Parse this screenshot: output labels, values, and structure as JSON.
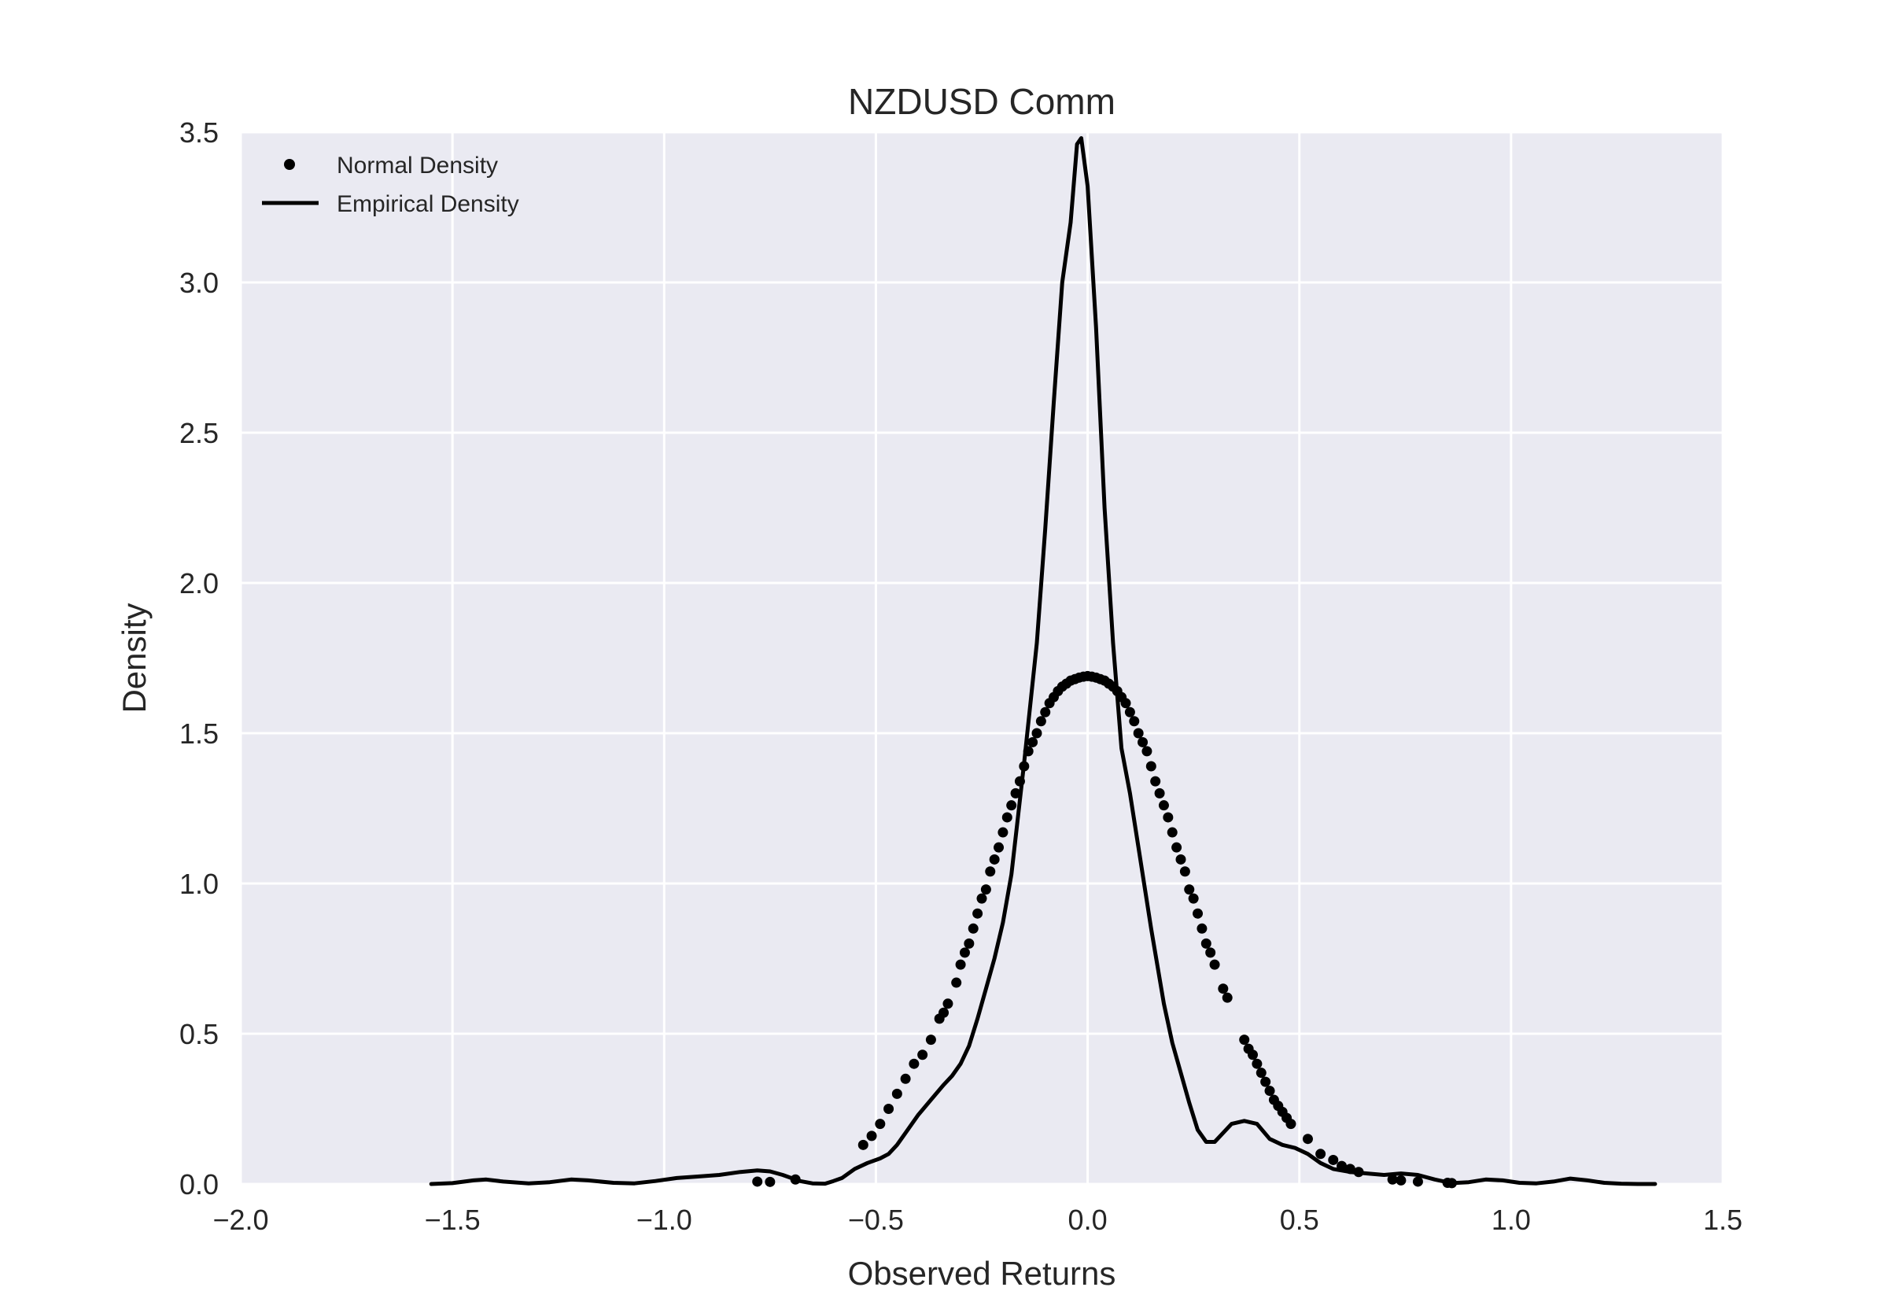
{
  "chart_data": {
    "type": "line",
    "title": "NZDUSD Comm",
    "xlabel": "Observed Returns",
    "ylabel": "Density",
    "xlim": [
      -2.0,
      1.5
    ],
    "ylim": [
      0.0,
      3.5
    ],
    "xticks": [
      -2.0,
      -1.5,
      -1.0,
      -0.5,
      0.0,
      0.5,
      1.0,
      1.5
    ],
    "xtick_labels": [
      "−2.0",
      "−1.5",
      "−1.0",
      "−0.5",
      "0.0",
      "0.5",
      "1.0",
      "1.5"
    ],
    "yticks": [
      0.0,
      0.5,
      1.0,
      1.5,
      2.0,
      2.5,
      3.0,
      3.5
    ],
    "ytick_labels": [
      "0.0",
      "0.5",
      "1.0",
      "1.5",
      "2.0",
      "2.5",
      "3.0",
      "3.5"
    ],
    "grid": true,
    "background": "#eaeaf2",
    "grid_color": "#ffffff",
    "series_color": "#000000",
    "legend_position": "top-left",
    "legend": [
      {
        "label": "Normal Density",
        "marker": "dot"
      },
      {
        "label": "Empirical Density",
        "marker": "line"
      }
    ],
    "series": [
      {
        "name": "Normal Density",
        "kind": "scatter",
        "mean": 0.0,
        "std": 0.236,
        "x": [
          -0.78,
          -0.75,
          -0.69,
          -0.53,
          -0.51,
          -0.49,
          -0.47,
          -0.45,
          -0.43,
          -0.41,
          -0.39,
          -0.37,
          -0.35,
          -0.34,
          -0.33,
          -0.31,
          -0.3,
          -0.29,
          -0.28,
          -0.27,
          -0.26,
          -0.25,
          -0.24,
          -0.23,
          -0.22,
          -0.21,
          -0.2,
          -0.19,
          -0.18,
          -0.17,
          -0.16,
          -0.15,
          -0.14,
          -0.13,
          -0.12,
          -0.11,
          -0.1,
          -0.09,
          -0.08,
          -0.07,
          -0.06,
          -0.05,
          -0.04,
          -0.03,
          -0.02,
          -0.01,
          0.0,
          0.01,
          0.02,
          0.03,
          0.04,
          0.05,
          0.06,
          0.07,
          0.08,
          0.09,
          0.1,
          0.11,
          0.12,
          0.13,
          0.14,
          0.15,
          0.16,
          0.17,
          0.18,
          0.19,
          0.2,
          0.21,
          0.22,
          0.23,
          0.24,
          0.25,
          0.26,
          0.27,
          0.28,
          0.29,
          0.3,
          0.32,
          0.33,
          0.37,
          0.38,
          0.39,
          0.4,
          0.41,
          0.42,
          0.43,
          0.44,
          0.45,
          0.46,
          0.47,
          0.48,
          0.52,
          0.55,
          0.58,
          0.6,
          0.62,
          0.64,
          0.72,
          0.74,
          0.78,
          0.85,
          0.86
        ],
        "y": [
          0.008,
          0.007,
          0.015,
          0.13,
          0.16,
          0.2,
          0.25,
          0.3,
          0.35,
          0.4,
          0.43,
          0.48,
          0.55,
          0.57,
          0.6,
          0.67,
          0.73,
          0.77,
          0.8,
          0.85,
          0.9,
          0.95,
          0.98,
          1.04,
          1.08,
          1.12,
          1.17,
          1.22,
          1.26,
          1.3,
          1.34,
          1.39,
          1.44,
          1.47,
          1.5,
          1.54,
          1.57,
          1.6,
          1.62,
          1.64,
          1.655,
          1.665,
          1.675,
          1.68,
          1.685,
          1.688,
          1.69,
          1.688,
          1.685,
          1.68,
          1.675,
          1.665,
          1.655,
          1.64,
          1.62,
          1.6,
          1.57,
          1.54,
          1.5,
          1.47,
          1.44,
          1.39,
          1.34,
          1.3,
          1.26,
          1.22,
          1.17,
          1.12,
          1.08,
          1.04,
          0.98,
          0.95,
          0.9,
          0.85,
          0.8,
          0.77,
          0.73,
          0.65,
          0.62,
          0.48,
          0.45,
          0.43,
          0.4,
          0.37,
          0.34,
          0.31,
          0.28,
          0.26,
          0.24,
          0.22,
          0.2,
          0.15,
          0.1,
          0.08,
          0.06,
          0.05,
          0.04,
          0.015,
          0.012,
          0.008,
          0.004,
          0.003
        ]
      },
      {
        "name": "Empirical Density",
        "kind": "line",
        "x": [
          -1.55,
          -1.5,
          -1.45,
          -1.42,
          -1.38,
          -1.32,
          -1.27,
          -1.22,
          -1.18,
          -1.12,
          -1.07,
          -1.02,
          -0.97,
          -0.92,
          -0.87,
          -0.82,
          -0.78,
          -0.75,
          -0.72,
          -0.68,
          -0.65,
          -0.62,
          -0.6,
          -0.58,
          -0.55,
          -0.52,
          -0.49,
          -0.47,
          -0.45,
          -0.43,
          -0.4,
          -0.37,
          -0.34,
          -0.32,
          -0.3,
          -0.28,
          -0.26,
          -0.24,
          -0.22,
          -0.2,
          -0.18,
          -0.15,
          -0.12,
          -0.1,
          -0.08,
          -0.06,
          -0.04,
          -0.025,
          -0.015,
          0.0,
          0.02,
          0.04,
          0.06,
          0.08,
          0.1,
          0.12,
          0.15,
          0.18,
          0.2,
          0.22,
          0.24,
          0.26,
          0.28,
          0.3,
          0.32,
          0.34,
          0.37,
          0.4,
          0.43,
          0.46,
          0.49,
          0.52,
          0.55,
          0.58,
          0.62,
          0.66,
          0.7,
          0.74,
          0.78,
          0.82,
          0.86,
          0.9,
          0.94,
          0.98,
          1.02,
          1.06,
          1.1,
          1.14,
          1.18,
          1.22,
          1.26,
          1.3,
          1.34
        ],
        "y": [
          0.0,
          0.003,
          0.012,
          0.015,
          0.008,
          0.002,
          0.006,
          0.015,
          0.012,
          0.004,
          0.002,
          0.01,
          0.02,
          0.025,
          0.03,
          0.04,
          0.045,
          0.042,
          0.03,
          0.01,
          0.002,
          0.001,
          0.01,
          0.02,
          0.05,
          0.07,
          0.085,
          0.1,
          0.13,
          0.17,
          0.23,
          0.28,
          0.33,
          0.36,
          0.4,
          0.46,
          0.55,
          0.65,
          0.75,
          0.87,
          1.03,
          1.4,
          1.8,
          2.18,
          2.6,
          3.0,
          3.2,
          3.46,
          3.48,
          3.32,
          2.85,
          2.25,
          1.8,
          1.45,
          1.3,
          1.12,
          0.85,
          0.6,
          0.47,
          0.37,
          0.27,
          0.18,
          0.14,
          0.14,
          0.17,
          0.2,
          0.21,
          0.2,
          0.15,
          0.13,
          0.12,
          0.1,
          0.07,
          0.05,
          0.04,
          0.035,
          0.03,
          0.035,
          0.03,
          0.015,
          0.003,
          0.006,
          0.015,
          0.012,
          0.004,
          0.002,
          0.008,
          0.018,
          0.012,
          0.004,
          0.001,
          0.0,
          0.0
        ]
      }
    ]
  }
}
